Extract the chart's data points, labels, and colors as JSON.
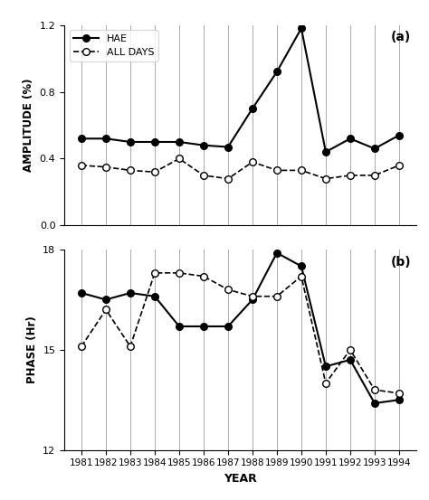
{
  "years": [
    1981,
    1982,
    1983,
    1984,
    1985,
    1986,
    1987,
    1988,
    1989,
    1990,
    1991,
    1992,
    1993,
    1994
  ],
  "amp_hae": [
    0.52,
    0.52,
    0.5,
    0.5,
    0.5,
    0.48,
    0.47,
    0.7,
    0.92,
    1.18,
    0.44,
    0.52,
    0.46,
    0.54
  ],
  "amp_alldays": [
    0.36,
    0.35,
    0.33,
    0.32,
    0.4,
    0.3,
    0.28,
    0.38,
    0.33,
    0.33,
    0.28,
    0.3,
    0.3,
    0.36
  ],
  "phase_hae": [
    16.7,
    16.5,
    16.7,
    16.6,
    15.7,
    15.7,
    15.7,
    16.5,
    17.9,
    17.5,
    14.5,
    14.7,
    13.4,
    13.5
  ],
  "phase_alldays": [
    15.1,
    16.2,
    15.1,
    17.3,
    17.3,
    17.2,
    16.8,
    16.6,
    16.6,
    17.2,
    14.0,
    15.0,
    13.8,
    13.7
  ],
  "amp_ylim": [
    0,
    1.2
  ],
  "amp_yticks": [
    0,
    0.4,
    0.8,
    1.2
  ],
  "phase_ylim": [
    12,
    18
  ],
  "phase_yticks": [
    12,
    15,
    18
  ],
  "xlabel": "YEAR",
  "amp_ylabel": "AMPLITUDE (%)",
  "phase_ylabel": "PHASE (Hr)",
  "label_hae": "HAE",
  "label_alldays": "ALL DAYS",
  "label_a": "(a)",
  "label_b": "(b)",
  "background_color": "#ffffff",
  "line_color": "#000000",
  "vline_color": "#aaaaaa",
  "xlim": [
    1980.3,
    1994.7
  ]
}
